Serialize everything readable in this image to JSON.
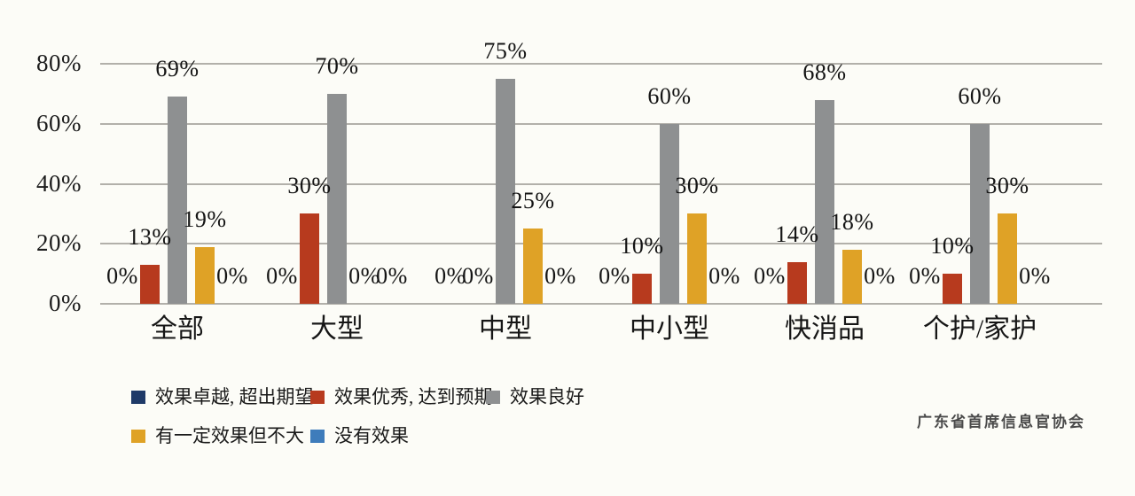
{
  "page": {
    "source_label": "广东省首席信息官协会"
  },
  "chart_data": {
    "type": "bar",
    "title": "",
    "xlabel": "",
    "ylabel": "",
    "categories": [
      "全部",
      "大型",
      "中型",
      "中小型",
      "快消品",
      "个护/家护"
    ],
    "series": [
      {
        "name": "效果卓越, 超出期望",
        "color": "#1f3a68",
        "values": [
          0,
          0,
          0,
          0,
          0,
          0
        ]
      },
      {
        "name": "效果优秀, 达到预期",
        "color": "#b73a1e",
        "values": [
          13,
          30,
          0,
          10,
          14,
          10
        ]
      },
      {
        "name": "效果良好",
        "color": "#8e9091",
        "values": [
          69,
          70,
          75,
          60,
          68,
          60
        ]
      },
      {
        "name": "有一定效果但不大",
        "color": "#dfa226",
        "values": [
          19,
          0,
          25,
          30,
          18,
          30
        ]
      },
      {
        "name": "没有效果",
        "color": "#3e7cbb",
        "values": [
          0,
          0,
          0,
          0,
          0,
          0
        ]
      }
    ],
    "data_labels": true,
    "value_suffix": "%",
    "yticks": [
      0,
      20,
      40,
      60,
      80
    ],
    "ytick_suffix": "%",
    "ylim": [
      0,
      80
    ],
    "grid": true,
    "gridline_color": "#b2b0aa",
    "legend_position": "bottom",
    "legend_rows": [
      [
        0,
        1,
        2
      ],
      [
        3,
        4
      ]
    ]
  }
}
